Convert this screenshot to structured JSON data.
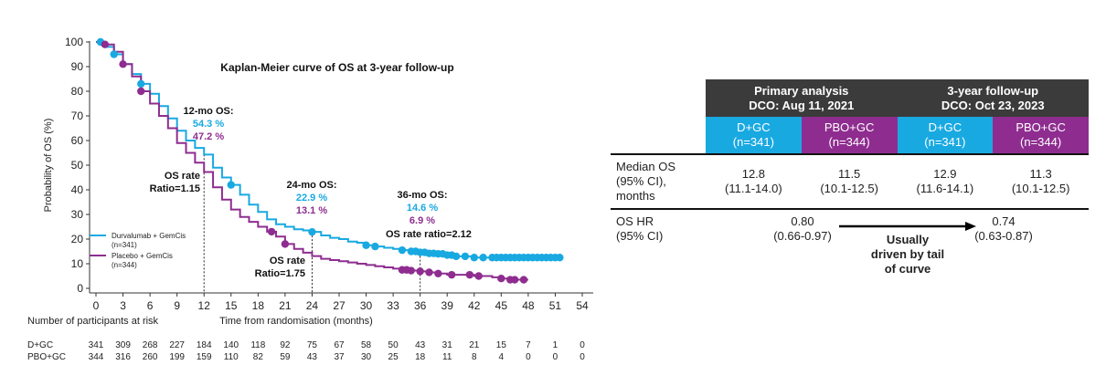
{
  "chart_data": {
    "type": "line",
    "title": "Kaplan-Meier curve of OS at 3-year follow-up",
    "xlabel": "Time from randomisation (months)",
    "ylabel": "Probability of OS (%)",
    "xlim": [
      0,
      54
    ],
    "ylim": [
      0,
      100
    ],
    "xticks": [
      0,
      3,
      6,
      9,
      12,
      15,
      18,
      21,
      24,
      27,
      30,
      33,
      36,
      39,
      42,
      45,
      48,
      51,
      54
    ],
    "yticks": [
      0,
      10,
      20,
      30,
      40,
      50,
      60,
      70,
      80,
      90,
      100
    ],
    "legend_position": "bottom-left",
    "series": [
      {
        "name": "Durvalumab + GemCis",
        "n_label": "(n=341)",
        "color": "#19a9e1",
        "x": [
          0,
          1,
          2,
          3,
          4,
          5,
          6,
          7,
          8,
          9,
          10,
          11,
          12,
          13,
          14,
          15,
          16,
          17,
          18,
          19,
          20,
          21,
          22,
          23,
          24,
          25,
          26,
          27,
          28,
          29,
          30,
          31,
          32,
          33,
          34,
          35,
          36,
          37,
          38,
          39,
          40,
          41,
          42,
          43,
          44,
          45,
          46,
          47,
          48,
          49,
          50,
          51.5
        ],
        "y": [
          100,
          98,
          95,
          91,
          87,
          83,
          79,
          74,
          69,
          64,
          60,
          57,
          54.3,
          49,
          45,
          42,
          38,
          34,
          31,
          28,
          26,
          25,
          24,
          23.5,
          22.9,
          21.5,
          20.5,
          20,
          19,
          18.5,
          17.5,
          17,
          16.5,
          16,
          15.5,
          15,
          14.6,
          14.2,
          14,
          13.5,
          13,
          13,
          12.5,
          12.5,
          12.5,
          12.5,
          12.5,
          12.5,
          12.5,
          12.5,
          12.5,
          12.5
        ],
        "censor_x": [
          0.5,
          2,
          5,
          15,
          24,
          30,
          31,
          34,
          35,
          35.5,
          36,
          36.5,
          37,
          37.5,
          38,
          38.5,
          39,
          39.5,
          40,
          41,
          42,
          43,
          44,
          44.5,
          45,
          45.5,
          46,
          46.5,
          47,
          47.5,
          48,
          48.5,
          49,
          49.5,
          50,
          50.5,
          51,
          51.5
        ]
      },
      {
        "name": "Placebo + GemCis",
        "n_label": "(n=344)",
        "color": "#8e2d8f",
        "x": [
          0,
          1,
          2,
          3,
          4,
          5,
          6,
          7,
          8,
          9,
          10,
          11,
          12,
          13,
          14,
          15,
          16,
          17,
          18,
          19,
          20,
          21,
          22,
          23,
          24,
          25,
          26,
          27,
          28,
          29,
          30,
          31,
          32,
          33,
          34,
          35,
          36,
          37,
          38,
          39,
          40,
          41,
          42,
          43,
          44,
          45,
          46,
          47,
          48
        ],
        "y": [
          100,
          99,
          96,
          91,
          86,
          80,
          75,
          70,
          65,
          59,
          55,
          51,
          47.2,
          41,
          36,
          32,
          29,
          27,
          25,
          23,
          21,
          18,
          16,
          14.5,
          13.1,
          12,
          11.5,
          11,
          10.5,
          10,
          9.5,
          9,
          8.5,
          8,
          7.5,
          7.2,
          6.9,
          6.5,
          6,
          5.5,
          5.5,
          5.5,
          5,
          5,
          4.5,
          4,
          3.5,
          3.5,
          3.5
        ],
        "censor_x": [
          1,
          3,
          5,
          19.5,
          21,
          34,
          34.5,
          35,
          36,
          37,
          38,
          39.5,
          41.5,
          42.5,
          45,
          46,
          46.5,
          47.5
        ]
      }
    ],
    "annotations": [
      {
        "label": "12-mo OS:",
        "values": [
          "54.3 %",
          "47.2 %"
        ],
        "x": 12
      },
      {
        "label": "24-mo OS:",
        "values": [
          "22.9 %",
          "13.1 %"
        ],
        "x": 24
      },
      {
        "label": "36-mo OS:",
        "values": [
          "14.6 %",
          "6.9 %"
        ],
        "x": 36
      }
    ],
    "ratio_labels": [
      {
        "line1": "OS rate",
        "line2": "Ratio=1.15",
        "x": 12
      },
      {
        "line1": "OS rate",
        "line2": "Ratio=1.75",
        "x": 24
      },
      {
        "line1": "OS rate ratio=2.12",
        "line2": "",
        "x": 36
      }
    ],
    "at_risk": {
      "title": "Number of participants at risk",
      "rows": [
        {
          "label": "D+GC",
          "values": [
            "341",
            "309",
            "268",
            "227",
            "184",
            "140",
            "118",
            "92",
            "75",
            "67",
            "58",
            "50",
            "43",
            "31",
            "21",
            "15",
            "7",
            "1",
            "0"
          ]
        },
        {
          "label": "PBO+GC",
          "values": [
            "344",
            "316",
            "260",
            "199",
            "159",
            "110",
            "82",
            "59",
            "43",
            "37",
            "30",
            "25",
            "18",
            "11",
            "8",
            "4",
            "0",
            "0",
            "0"
          ]
        }
      ]
    }
  },
  "table": {
    "groups": [
      {
        "title": "Primary analysis",
        "subtitle": "DCO: Aug 11, 2021"
      },
      {
        "title": "3-year follow-up",
        "subtitle": "DCO: Oct 23, 2023"
      }
    ],
    "columns": [
      {
        "name": "D+GC",
        "n": "(n=341)"
      },
      {
        "name": "PBO+GC",
        "n": "(n=344)"
      },
      {
        "name": "D+GC",
        "n": "(n=341)"
      },
      {
        "name": "PBO+GC",
        "n": "(n=344)"
      }
    ],
    "median_os": {
      "label": [
        "Median OS",
        "(95% CI),",
        "months"
      ],
      "values": [
        {
          "v": "12.8",
          "ci": "(11.1-14.0)"
        },
        {
          "v": "11.5",
          "ci": "(10.1-12.5)"
        },
        {
          "v": "12.9",
          "ci": "(11.6-14.1)"
        },
        {
          "v": "11.3",
          "ci": "(10.1-12.5)"
        }
      ]
    },
    "os_hr": {
      "label": [
        "OS HR",
        "(95% CI)"
      ],
      "primary": {
        "v": "0.80",
        "ci": "(0.66-0.97)"
      },
      "followup": {
        "v": "0.74",
        "ci": "(0.63-0.87)"
      },
      "note": [
        "Usually",
        "driven by tail",
        "of curve"
      ]
    }
  }
}
